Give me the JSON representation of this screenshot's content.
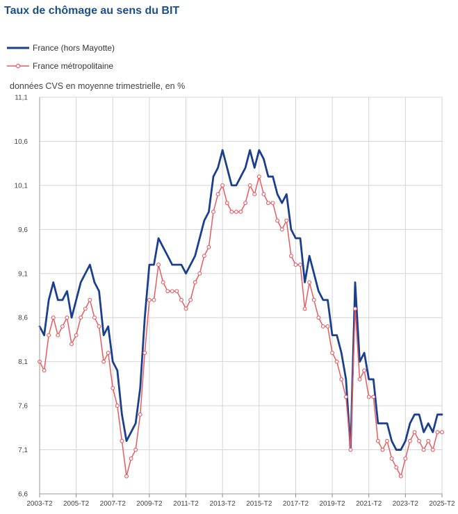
{
  "title": "Taux de chômage au sens du BIT",
  "subtitle": "données CVS en moyenne trimestrielle, en %",
  "chart_data": {
    "type": "line",
    "ylim": [
      6.6,
      11.1
    ],
    "yticks": [
      "11,1",
      "10,6",
      "10,1",
      "9,6",
      "9,1",
      "8,6",
      "8,1",
      "7,6",
      "7,1",
      "6,6"
    ],
    "ytick_values": [
      11.1,
      10.6,
      10.1,
      9.6,
      9.1,
      8.6,
      8.1,
      7.6,
      7.1,
      6.6
    ],
    "xticks": [
      "2003-T2",
      "2005-T2",
      "2007-T2",
      "2009-T2",
      "2011-T2",
      "2013-T2",
      "2015-T2",
      "2017-T2",
      "2019-T2",
      "2021-T2",
      "2023-T2",
      "2025-T2"
    ],
    "grid": true,
    "legend_position": "top-left",
    "series": [
      {
        "name": "France (hors Mayotte)",
        "color": "#1b3f8f",
        "marker": "none",
        "values": [
          8.5,
          8.4,
          8.8,
          9.0,
          8.8,
          8.8,
          8.9,
          8.6,
          8.8,
          9.0,
          9.1,
          9.2,
          9.0,
          8.9,
          8.4,
          8.5,
          8.1,
          8.0,
          7.5,
          7.2,
          7.3,
          7.4,
          7.8,
          8.6,
          9.2,
          9.2,
          9.5,
          9.4,
          9.3,
          9.2,
          9.2,
          9.2,
          9.1,
          9.2,
          9.3,
          9.5,
          9.7,
          9.8,
          10.2,
          10.3,
          10.5,
          10.3,
          10.1,
          10.1,
          10.2,
          10.3,
          10.5,
          10.3,
          10.5,
          10.4,
          10.2,
          10.2,
          10.0,
          9.9,
          10.0,
          9.6,
          9.5,
          9.5,
          9.0,
          9.3,
          9.1,
          8.9,
          8.8,
          8.8,
          8.4,
          8.4,
          8.2,
          7.9,
          7.1,
          9.0,
          8.1,
          8.2,
          7.9,
          7.9,
          7.4,
          7.4,
          7.4,
          7.2,
          7.1,
          7.1,
          7.2,
          7.4,
          7.5,
          7.5,
          7.3,
          7.4,
          7.3,
          7.5,
          7.5
        ]
      },
      {
        "name": "France métropolitaine",
        "color": "#e85a5f",
        "marker": "circle",
        "values": [
          8.1,
          8.0,
          8.4,
          8.6,
          8.4,
          8.5,
          8.6,
          8.3,
          8.4,
          8.6,
          8.7,
          8.8,
          8.6,
          8.5,
          8.1,
          8.2,
          7.8,
          7.6,
          7.2,
          6.8,
          7.0,
          7.1,
          7.5,
          8.2,
          8.8,
          8.8,
          9.2,
          9.0,
          8.9,
          8.9,
          8.9,
          8.8,
          8.7,
          8.8,
          9.0,
          9.1,
          9.3,
          9.4,
          9.8,
          10.0,
          10.1,
          9.9,
          9.8,
          9.8,
          9.8,
          9.9,
          10.1,
          10.0,
          10.2,
          10.0,
          9.9,
          9.9,
          9.7,
          9.6,
          9.7,
          9.3,
          9.2,
          9.2,
          8.7,
          9.0,
          8.8,
          8.6,
          8.5,
          8.5,
          8.2,
          8.1,
          7.9,
          7.7,
          7.1,
          8.7,
          7.9,
          8.0,
          7.7,
          7.7,
          7.2,
          7.1,
          7.2,
          7.0,
          6.9,
          6.8,
          7.0,
          7.2,
          7.3,
          7.2,
          7.1,
          7.2,
          7.1,
          7.3,
          7.3
        ]
      }
    ]
  }
}
